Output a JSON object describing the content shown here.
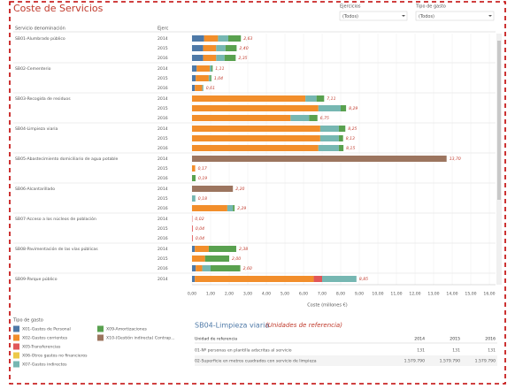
{
  "header": {
    "title": "Coste de Servicios"
  },
  "filters": [
    {
      "label": "Ejercicios",
      "value": "(Todos)"
    },
    {
      "label": "Tipo de gasto",
      "value": "(Todos)"
    }
  ],
  "chart_data": {
    "type": "stacked-barh",
    "row_header": "Servicio denominación",
    "year_header": "Ejerc",
    "row_labels": [
      "SB01-Alumbrado público",
      null,
      null,
      "SB02-Cementerio",
      null,
      null,
      "SB03-Recogida de residuos",
      null,
      null,
      "SB04-Limpieza viaria",
      null,
      null,
      "SB05-Abastecimiento domiciliario de agua potable",
      null,
      null,
      "SB06-Alcantarillado",
      null,
      null,
      "SB07-Acceso a los núcleos de población",
      null,
      null,
      "SB08-Pavimentación de las vías públicas",
      null,
      null,
      "SB09-Parque público"
    ],
    "categories": [
      "2014",
      "2015",
      "2016",
      "2014",
      "2015",
      "2016",
      "2014",
      "2015",
      "2016",
      "2014",
      "2015",
      "2016",
      "2014",
      "2015",
      "2016",
      "2014",
      "2015",
      "2016",
      "2014",
      "2015",
      "2016",
      "2014",
      "2015",
      "2016",
      "2014"
    ],
    "series": [
      {
        "name": "X01-Gastos de Personal",
        "color": "#4e79a7",
        "values": [
          0.65,
          0.6,
          0.6,
          0.25,
          0.2,
          0.15,
          null,
          null,
          null,
          null,
          null,
          null,
          null,
          null,
          null,
          null,
          null,
          null,
          null,
          null,
          null,
          0.15,
          null,
          0.2,
          0.15
        ]
      },
      {
        "name": "X02-Gastos corrientes",
        "color": "#f28e2b",
        "values": [
          0.75,
          0.7,
          0.7,
          0.7,
          0.7,
          0.4,
          6.1,
          6.8,
          5.3,
          6.9,
          6.9,
          6.8,
          null,
          0.17,
          null,
          null,
          null,
          1.9,
          null,
          null,
          null,
          0.75,
          0.7,
          0.35,
          6.4
        ]
      },
      {
        "name": "X05-Transferencias",
        "color": "#e15759",
        "values": [
          null,
          null,
          null,
          null,
          null,
          null,
          null,
          null,
          null,
          null,
          null,
          null,
          null,
          null,
          null,
          null,
          null,
          null,
          0.02,
          0.04,
          0.04,
          null,
          null,
          null,
          0.45
        ]
      },
      {
        "name": "X06-Otros gastos no financieros",
        "color": "#edc948",
        "values": [
          null,
          null,
          null,
          null,
          null,
          null,
          null,
          null,
          null,
          null,
          null,
          null,
          null,
          null,
          null,
          null,
          null,
          null,
          null,
          null,
          null,
          null,
          null,
          null,
          null
        ]
      },
      {
        "name": "X07-Gastos indirectos",
        "color": "#76b7b2",
        "values": [
          0.55,
          0.5,
          0.45,
          0.1,
          0.08,
          0.06,
          0.6,
          1.2,
          1.0,
          1.0,
          1.0,
          1.1,
          null,
          null,
          null,
          null,
          0.18,
          0.3,
          null,
          null,
          null,
          null,
          null,
          0.45,
          1.85
        ]
      },
      {
        "name": "X09-Amortizaciones",
        "color": "#59a14f",
        "values": [
          0.68,
          0.6,
          0.6,
          0.06,
          0.06,
          null,
          0.41,
          0.29,
          0.45,
          0.35,
          0.23,
          0.25,
          null,
          null,
          0.19,
          null,
          null,
          0.09,
          null,
          null,
          null,
          1.48,
          1.3,
          1.6,
          null
        ]
      },
      {
        "name": "X10-(Gestión indirecta) Contrap...",
        "color": "#9c755f",
        "values": [
          null,
          null,
          null,
          null,
          null,
          null,
          null,
          null,
          null,
          null,
          null,
          null,
          13.7,
          null,
          null,
          2.2,
          null,
          null,
          null,
          null,
          null,
          null,
          null,
          null,
          null
        ]
      }
    ],
    "totals": [
      2.63,
      2.4,
      2.35,
      1.11,
      1.04,
      0.61,
      7.11,
      8.29,
      6.75,
      8.25,
      8.13,
      8.15,
      13.7,
      0.17,
      0.19,
      2.2,
      0.18,
      2.29,
      0.02,
      0.04,
      0.04,
      2.38,
      2.0,
      2.6,
      8.85
    ],
    "total_labels": [
      "2,63",
      "2,40",
      "2,35",
      "1,11",
      "1,04",
      "0,61",
      "7,11",
      "8,29",
      "6,75",
      "8,25",
      "8,13",
      "8,15",
      "13,70",
      "0,17",
      "0,19",
      "2,20",
      "0,18",
      "2,29",
      "0,02",
      "0,04",
      "0,04",
      "2,38",
      "2,00",
      "2,60",
      "8,85"
    ],
    "xlim": [
      0,
      16
    ],
    "xticks": [
      {
        "value": 0,
        "label": "0,00"
      },
      {
        "value": 1,
        "label": "1,00"
      },
      {
        "value": 2,
        "label": "2,00"
      },
      {
        "value": 3,
        "label": "3,00"
      },
      {
        "value": 4,
        "label": "4,00"
      },
      {
        "value": 5,
        "label": "5,00"
      },
      {
        "value": 6,
        "label": "6,00"
      },
      {
        "value": 7,
        "label": "7,00"
      },
      {
        "value": 8,
        "label": "8,00"
      },
      {
        "value": 9,
        "label": "9,00"
      },
      {
        "value": 10,
        "label": "10,00"
      },
      {
        "value": 11,
        "label": "11,00"
      },
      {
        "value": 12,
        "label": "12,00"
      },
      {
        "value": 13,
        "label": "13,00"
      },
      {
        "value": 14,
        "label": "14,00"
      },
      {
        "value": 15,
        "label": "15,00"
      },
      {
        "value": 16,
        "label": "16,00"
      }
    ],
    "xlabel": "Coste (millones €)",
    "legend_title": "Tipo de gasto"
  },
  "table": {
    "title": "SB04-Limpieza viaria",
    "subtitle": "(Unidades de referencia)",
    "columns": [
      "Unidad de referencia",
      "2014",
      "2015",
      "2016"
    ],
    "rows": [
      [
        "01-Nº personas en plantilla adscritas al servicio",
        "131",
        "131",
        "131"
      ],
      [
        "02-Superficie en metros cuadrados con servicio de limpieza",
        "1.579.790",
        "1.579.790",
        "1.579.790"
      ]
    ]
  }
}
